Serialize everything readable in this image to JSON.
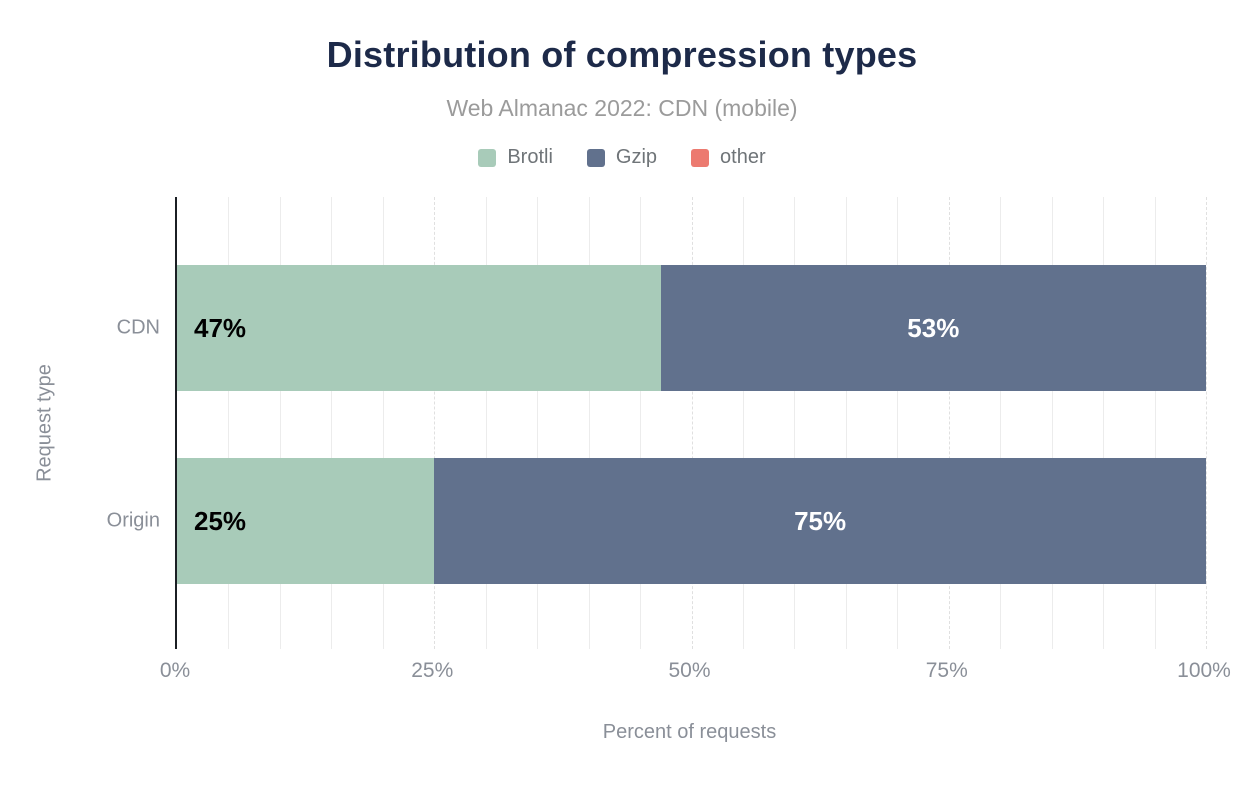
{
  "chart_data": {
    "type": "bar",
    "orientation": "horizontal",
    "stacked": true,
    "title": "Distribution of compression types",
    "subtitle": "Web Almanac 2022: CDN (mobile)",
    "xlabel": "Percent of requests",
    "ylabel": "Request type",
    "categories": [
      "CDN",
      "Origin"
    ],
    "series": [
      {
        "name": "Brotli",
        "color": "#a8cbb9",
        "values": [
          47,
          25
        ],
        "labels": [
          "47%",
          "25%"
        ],
        "label_color": "#000000",
        "label_align": "start"
      },
      {
        "name": "Gzip",
        "color": "#61718d",
        "values": [
          53,
          75
        ],
        "labels": [
          "53%",
          "75%"
        ],
        "label_color": "#ffffff",
        "label_align": "center"
      },
      {
        "name": "other",
        "color": "#ec7a70",
        "values": [
          0,
          0
        ],
        "labels": [
          "",
          ""
        ],
        "label_color": "#ffffff",
        "label_align": "center"
      }
    ],
    "xlim": [
      0,
      100
    ],
    "x_ticks": [
      {
        "value": 0,
        "label": "0%"
      },
      {
        "value": 25,
        "label": "25%"
      },
      {
        "value": 50,
        "label": "50%"
      },
      {
        "value": 75,
        "label": "75%"
      },
      {
        "value": 100,
        "label": "100%"
      }
    ],
    "grid": {
      "minor_step": 5,
      "major_step": 25,
      "visible": true
    },
    "legend_position": "top"
  },
  "colors": {
    "background": "#ffffff",
    "title": "#1d2a49",
    "subtitle": "#9b9b9b",
    "legend_text": "#6f7478",
    "axis_text": "#8a8f98",
    "axis_line": "#1b1f24",
    "grid_minor": "#ececec",
    "grid_major": "#e0e0e0"
  }
}
